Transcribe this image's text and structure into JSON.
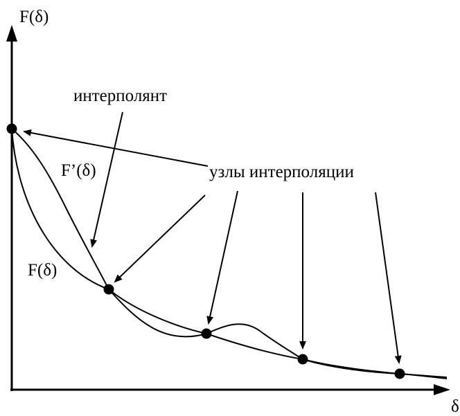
{
  "axes": {
    "y_label": "F(δ)",
    "x_label": "δ"
  },
  "labels": {
    "interpolant": "интерполянт",
    "interpolation_nodes": "узлы интерполяции",
    "f_prime": "F’(δ)",
    "f": "F(δ)"
  },
  "colors": {
    "ink": "#000000",
    "background": "#ffffff"
  },
  "nodes_count": 5
}
